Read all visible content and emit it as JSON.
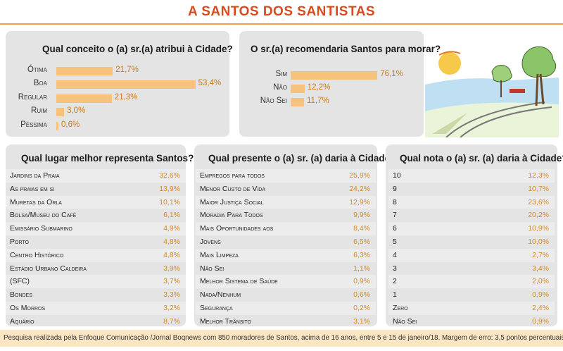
{
  "title": "A SANTOS DOS SANTISTAS",
  "footnote": "Pesquisa realizada pela Enfoque Comunicação /Jornal Boqnews com 850 moradores de Santos, acima de 16 anos, entre 5 e 15 de janeiro/18.  Margem de erro: 3,5 pontos percentuais para mais ou menos.",
  "colors": {
    "accent": "#d94a1e",
    "bar": "#f7c27c",
    "value": "#d98a1e",
    "panel": "#e4e4e4",
    "footnote_bg": "#fbe6c4"
  },
  "chart_data": [
    {
      "type": "bar",
      "title": "Qual conceito o (a) sr.(a) atribui à Cidade?",
      "categories": [
        "Ótima",
        "Boa",
        "Regular",
        "Ruim",
        "Péssima"
      ],
      "values": [
        21.7,
        53.4,
        21.3,
        3.0,
        0.6
      ],
      "value_labels": [
        "21,7%",
        "53,4%",
        "21,3%",
        "3,0%",
        "0,6%"
      ]
    },
    {
      "type": "bar",
      "title": "O sr.(a) recomendaria Santos para morar?",
      "categories": [
        "Sim",
        "Não",
        "Não Sei"
      ],
      "values": [
        76.1,
        12.2,
        11.7
      ],
      "value_labels": [
        "76,1%",
        "12,2%",
        "11,7%"
      ]
    },
    {
      "type": "table",
      "title": "Qual lugar melhor representa Santos?",
      "rows": [
        {
          "label": "Jardins da Praia",
          "value": "32,6%"
        },
        {
          "label": "As praias em si",
          "value": "13,9%"
        },
        {
          "label": "Muretas da Orla",
          "value": "10,1%"
        },
        {
          "label": "Bolsa/Museu do Café",
          "value": "6,1%"
        },
        {
          "label": "Emissário Submarino",
          "value": "4,9%"
        },
        {
          "label": "Porto",
          "value": "4,8%"
        },
        {
          "label": "Centro Histórico",
          "value": "4,8%"
        },
        {
          "label": "Estádio Urbano Caldeira",
          "value": "3,9%"
        },
        {
          "label": "(SFC)",
          "value": "3,7%"
        },
        {
          "label": "Bondes",
          "value": "3,3%"
        },
        {
          "label": "Os Morros",
          "value": "3,2%"
        },
        {
          "label": "Aquário",
          "value": "8,7%"
        }
      ]
    },
    {
      "type": "table",
      "title": "Qual presente o (a) sr. (a) daria à Cidade?",
      "rows": [
        {
          "label": "Empregos para todos",
          "value": "25,9%"
        },
        {
          "label": "Menor Custo de Vida",
          "value": "24,2%"
        },
        {
          "label": "Maior Justiça Social",
          "value": "12,9%"
        },
        {
          "label": "Moradia Para Todos",
          "value": "9,9%"
        },
        {
          "label": "Mais Oportunidades aos",
          "value": "8,4%"
        },
        {
          "label": "Jovens",
          "value": "6,5%"
        },
        {
          "label": "Mais Limpeza",
          "value": "6,3%"
        },
        {
          "label": "Não Sei",
          "value": "1,1%"
        },
        {
          "label": "Melhor Sistema de Saúde",
          "value": "0,9%"
        },
        {
          "label": "Nada/Nenhum",
          "value": "0,6%"
        },
        {
          "label": "Segurança",
          "value": "0,2%"
        },
        {
          "label": "Melhor Trânsito",
          "value": "3,1%"
        }
      ]
    },
    {
      "type": "table",
      "title": "Qual nota o (a) sr. (a) daria à Cidade?",
      "rows": [
        {
          "label": "10",
          "value": "12,3%"
        },
        {
          "label": "9",
          "value": "10,7%"
        },
        {
          "label": "8",
          "value": "23,6%"
        },
        {
          "label": "7",
          "value": "20,2%"
        },
        {
          "label": "6",
          "value": "10,9%"
        },
        {
          "label": "5",
          "value": "10,0%"
        },
        {
          "label": "4",
          "value": "2,7%"
        },
        {
          "label": "3",
          "value": "3,4%"
        },
        {
          "label": "2",
          "value": "2,0%"
        },
        {
          "label": "1",
          "value": "0,9%"
        },
        {
          "label": "Zero",
          "value": "2,4%"
        },
        {
          "label": "Não Sei",
          "value": "0,9%"
        }
      ]
    }
  ]
}
